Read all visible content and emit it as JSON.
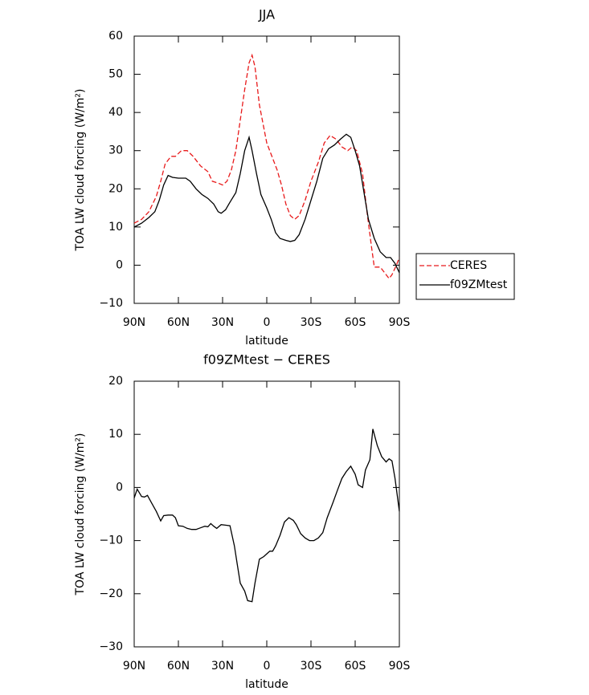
{
  "chart_data": [
    {
      "type": "line",
      "title": "JJA",
      "xlabel": "latitude",
      "ylabel": "TOA LW cloud forcing (W/m²)",
      "xlim": [
        90,
        -90
      ],
      "xticks": [
        {
          "value": 90,
          "label": "90N"
        },
        {
          "value": 60,
          "label": "60N"
        },
        {
          "value": 30,
          "label": "30N"
        },
        0,
        {
          "value": -30,
          "label": "30S"
        },
        {
          "value": -60,
          "label": "60S"
        },
        {
          "value": -90,
          "label": "90S"
        }
      ],
      "ylim": [
        -10,
        60
      ],
      "yticks": [
        {
          "value": -10,
          "label": "−10"
        },
        0,
        10,
        20,
        30,
        40,
        50,
        60
      ],
      "legend": "outside right",
      "series": [
        {
          "name": "CERES",
          "color": "#e8191a",
          "linestyle": "dashed",
          "x": [
            90,
            85,
            80,
            75,
            72,
            69,
            65,
            62,
            58,
            54,
            50,
            45,
            40,
            37,
            33,
            30,
            27,
            24,
            21,
            18,
            15,
            12,
            10,
            8,
            5,
            2,
            0,
            -3,
            -7,
            -10,
            -13,
            -16,
            -19,
            -22,
            -26,
            -30,
            -35,
            -39,
            -43,
            -47,
            -51,
            -55,
            -58,
            -61,
            -65,
            -68,
            -71,
            -73,
            -77,
            -80,
            -83,
            -85,
            -88,
            -90
          ],
          "values": [
            11,
            12,
            14,
            18,
            22,
            26.5,
            28.5,
            28.5,
            30,
            30,
            28.5,
            26,
            24.5,
            22,
            21.5,
            21,
            22,
            25,
            30,
            38,
            46,
            53,
            55,
            52,
            42,
            36,
            32,
            29,
            25,
            21,
            16,
            13,
            12,
            13,
            17,
            22,
            27,
            32,
            34,
            33,
            31,
            30,
            31,
            30,
            24,
            14,
            5,
            -0.5,
            -0.5,
            -2,
            -3.5,
            -2.5,
            0,
            2
          ]
        },
        {
          "name": "f09ZMtest",
          "color": "#000000",
          "linestyle": "solid",
          "x": [
            90,
            85,
            80,
            76,
            73,
            70,
            67,
            64,
            60,
            55,
            52,
            48,
            44,
            40,
            36,
            33,
            31,
            28,
            25,
            21,
            18,
            15,
            12,
            10,
            7,
            4,
            0,
            -3,
            -6,
            -9,
            -13,
            -16,
            -19,
            -22,
            -26,
            -30,
            -34,
            -38,
            -42,
            -46,
            -50,
            -54,
            -57,
            -60,
            -63,
            -66,
            -69,
            -73,
            -77,
            -81,
            -84,
            -87,
            -90
          ],
          "values": [
            10,
            11,
            12.5,
            14,
            17,
            21,
            23.5,
            23,
            22.8,
            22.8,
            22,
            20,
            18.5,
            17.5,
            16,
            14,
            13.6,
            14.5,
            16.5,
            19,
            24,
            30,
            33.5,
            30,
            24,
            18.5,
            15,
            12,
            8.5,
            7,
            6.5,
            6.2,
            6.5,
            8,
            12,
            17,
            22,
            28,
            30.5,
            31.5,
            33,
            34.3,
            33.5,
            30,
            26,
            19,
            12,
            7,
            3.5,
            2,
            2,
            0.5,
            -2
          ]
        }
      ]
    },
    {
      "type": "line",
      "title": "f09ZMtest − CERES",
      "xlabel": "latitude",
      "ylabel": "TOA LW cloud forcing (W/m²)",
      "xlim": [
        90,
        -90
      ],
      "xticks": [
        {
          "value": 90,
          "label": "90N"
        },
        {
          "value": 60,
          "label": "60N"
        },
        {
          "value": 30,
          "label": "30N"
        },
        0,
        {
          "value": -30,
          "label": "30S"
        },
        {
          "value": -60,
          "label": "60S"
        },
        {
          "value": -90,
          "label": "90S"
        }
      ],
      "ylim": [
        -30,
        20
      ],
      "yticks": [
        {
          "value": -30,
          "label": "−30"
        },
        {
          "value": -20,
          "label": "−20"
        },
        {
          "value": -10,
          "label": "−10"
        },
        0,
        10,
        20
      ],
      "series": [
        {
          "color": "#000000",
          "linestyle": "solid",
          "x": [
            90,
            88,
            85,
            83,
            81,
            78,
            75,
            72,
            70,
            67,
            64,
            62,
            60,
            57,
            54,
            51,
            48,
            45,
            42,
            40,
            38,
            36,
            34,
            31,
            28,
            25,
            22,
            20,
            18,
            15,
            13,
            10,
            8,
            5,
            2,
            0,
            -2,
            -4,
            -6,
            -9,
            -12,
            -15,
            -18,
            -20,
            -23,
            -26,
            -29,
            -32,
            -35,
            -38,
            -41,
            -45,
            -48,
            -51,
            -54,
            -57,
            -60,
            -62,
            -65,
            -67,
            -70,
            -72,
            -75,
            -78,
            -81,
            -83,
            -85,
            -87,
            -90
          ],
          "values": [
            -2,
            -0.3,
            -1.7,
            -1.8,
            -1.5,
            -3,
            -4.5,
            -6.3,
            -5.3,
            -5.2,
            -5.2,
            -5.7,
            -7.2,
            -7.3,
            -7.7,
            -7.9,
            -7.9,
            -7.6,
            -7.3,
            -7.4,
            -6.8,
            -7.3,
            -7.7,
            -7,
            -7.1,
            -7.2,
            -11,
            -14.5,
            -18,
            -19.5,
            -21.3,
            -21.5,
            -18,
            -13.5,
            -13,
            -12.5,
            -12,
            -12,
            -11,
            -9,
            -6.5,
            -5.7,
            -6.2,
            -7,
            -8.7,
            -9.5,
            -10,
            -10,
            -9.5,
            -8.5,
            -5.7,
            -2.8,
            -0.5,
            1.7,
            3,
            4,
            2.5,
            0.5,
            0,
            3.3,
            5.2,
            11,
            7.9,
            5.8,
            4.8,
            5.4,
            5,
            1.8,
            -4.5
          ]
        }
      ]
    }
  ]
}
